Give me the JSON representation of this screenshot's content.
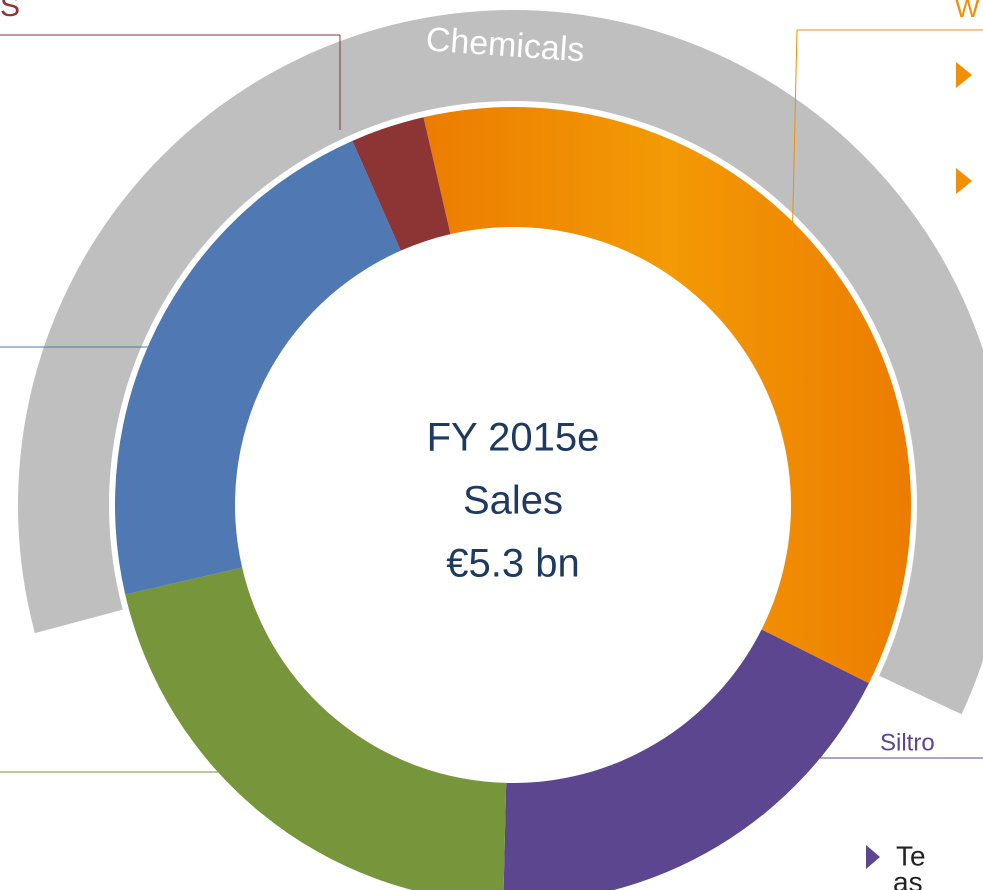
{
  "chart_data": {
    "type": "pie",
    "donut": true,
    "values": [
      36,
      18,
      21,
      22,
      3
    ],
    "colors": [
      "#f18f06",
      "#5c4690",
      "#77953a",
      "#5078b2",
      "#8c3534"
    ],
    "center_text": [
      "FY 2015e",
      "Sales",
      "€5.3 bn"
    ],
    "ring_label": "Chemicals",
    "annotations": {
      "top_left": "S",
      "top_right": "W",
      "siltronic": "Siltro",
      "bullet_line_1": "Te",
      "bullet_line_2": "as"
    }
  }
}
